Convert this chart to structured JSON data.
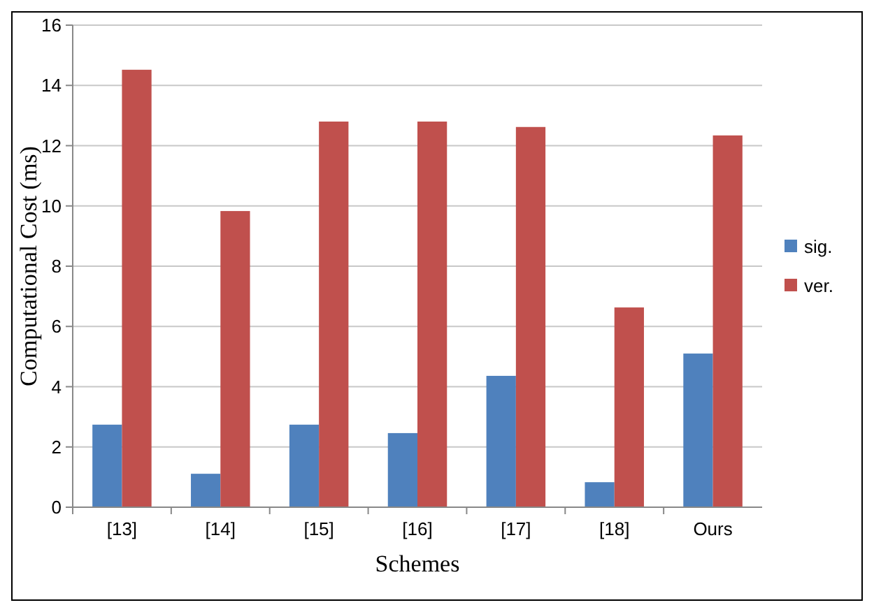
{
  "chart_data": {
    "type": "bar",
    "xlabel": "Schemes",
    "ylabel": "Computational Cost (ms)",
    "categories": [
      "[13]",
      "[14]",
      "[15]",
      "[16]",
      "[17]",
      "[18]",
      "Ours"
    ],
    "series": [
      {
        "name": "sig.",
        "color": "#4f81bd",
        "values": [
          2.74,
          1.11,
          2.74,
          2.46,
          4.36,
          0.83,
          5.1
        ]
      },
      {
        "name": "ver.",
        "color": "#c0504d",
        "values": [
          14.52,
          9.83,
          12.8,
          12.8,
          12.62,
          6.63,
          12.34
        ]
      }
    ],
    "ylim": [
      0,
      16
    ],
    "yticks": [
      0,
      2,
      4,
      6,
      8,
      10,
      12,
      14,
      16
    ],
    "grid": "y",
    "legend": "right"
  }
}
